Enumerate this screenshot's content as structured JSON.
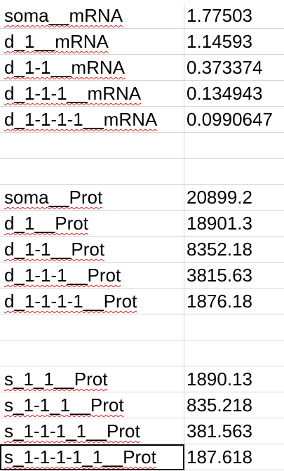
{
  "sheet": {
    "rows": [
      {
        "label": "soma__mRNA",
        "value": "1.77503"
      },
      {
        "label": "d_1__mRNA",
        "value": "1.14593"
      },
      {
        "label": "d_1-1__mRNA",
        "value": "0.373374"
      },
      {
        "label": "d_1-1-1__mRNA",
        "value": "0.134943"
      },
      {
        "label": "d_1-1-1-1__mRNA",
        "value": "0.0990647"
      },
      {
        "label": "",
        "value": ""
      },
      {
        "label": "",
        "value": ""
      },
      {
        "label": "soma__Prot",
        "value": "20899.2"
      },
      {
        "label": "d_1__Prot",
        "value": "18901.3"
      },
      {
        "label": "d_1-1__Prot",
        "value": "8352.18"
      },
      {
        "label": "d_1-1-1__Prot",
        "value": "3815.63"
      },
      {
        "label": "d_1-1-1-1__Prot",
        "value": "1876.18"
      },
      {
        "label": "",
        "value": ""
      },
      {
        "label": "",
        "value": ""
      },
      {
        "label": "s_1_1__Prot",
        "value": "1890.13"
      },
      {
        "label": "s_1-1_1__Prot",
        "value": "835.218"
      },
      {
        "label": "s_1-1-1_1__Prot",
        "value": "381.563"
      },
      {
        "label": "s_1-1-1-1_1__Prot",
        "value": "187.618"
      }
    ]
  }
}
